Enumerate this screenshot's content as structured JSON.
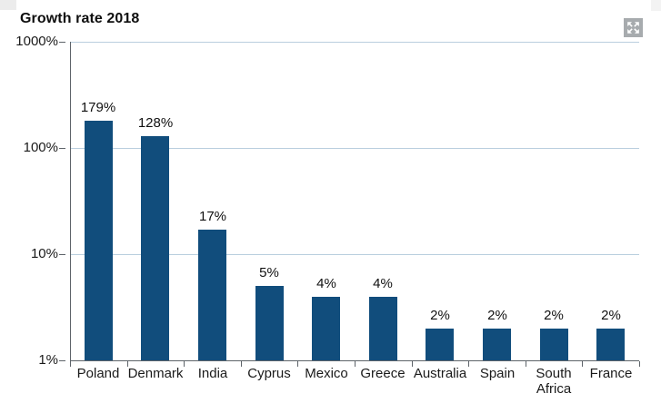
{
  "header": {
    "title": "Growth rate 2018",
    "expand_button": {
      "icon": "expand-icon",
      "background": "#a7abae",
      "glyph_color": "#ffffff"
    }
  },
  "chart_data": {
    "type": "bar",
    "title": "Growth rate 2018",
    "categories": [
      "Poland",
      "Denmark",
      "India",
      "Cyprus",
      "Mexico",
      "Greece",
      "Australia",
      "Spain",
      "South Africa",
      "France"
    ],
    "values": [
      179,
      128,
      17,
      5,
      4,
      4,
      2,
      2,
      2,
      2
    ],
    "value_labels": [
      "179%",
      "128%",
      "17%",
      "5%",
      "4%",
      "4%",
      "2%",
      "2%",
      "2%",
      "2%"
    ],
    "xlabel": "",
    "ylabel": "",
    "y_axis": {
      "scale": "log",
      "range": [
        1,
        1000
      ],
      "ticks": [
        1,
        10,
        100,
        1000
      ],
      "tick_labels": [
        "1%",
        "10%",
        "100%",
        "1000%"
      ]
    },
    "grid": true,
    "legend": false,
    "colors": {
      "bar": "#114d7c",
      "gridline": "#b9cede",
      "axis": "#5d6369",
      "text": "#1a1a1a"
    }
  }
}
